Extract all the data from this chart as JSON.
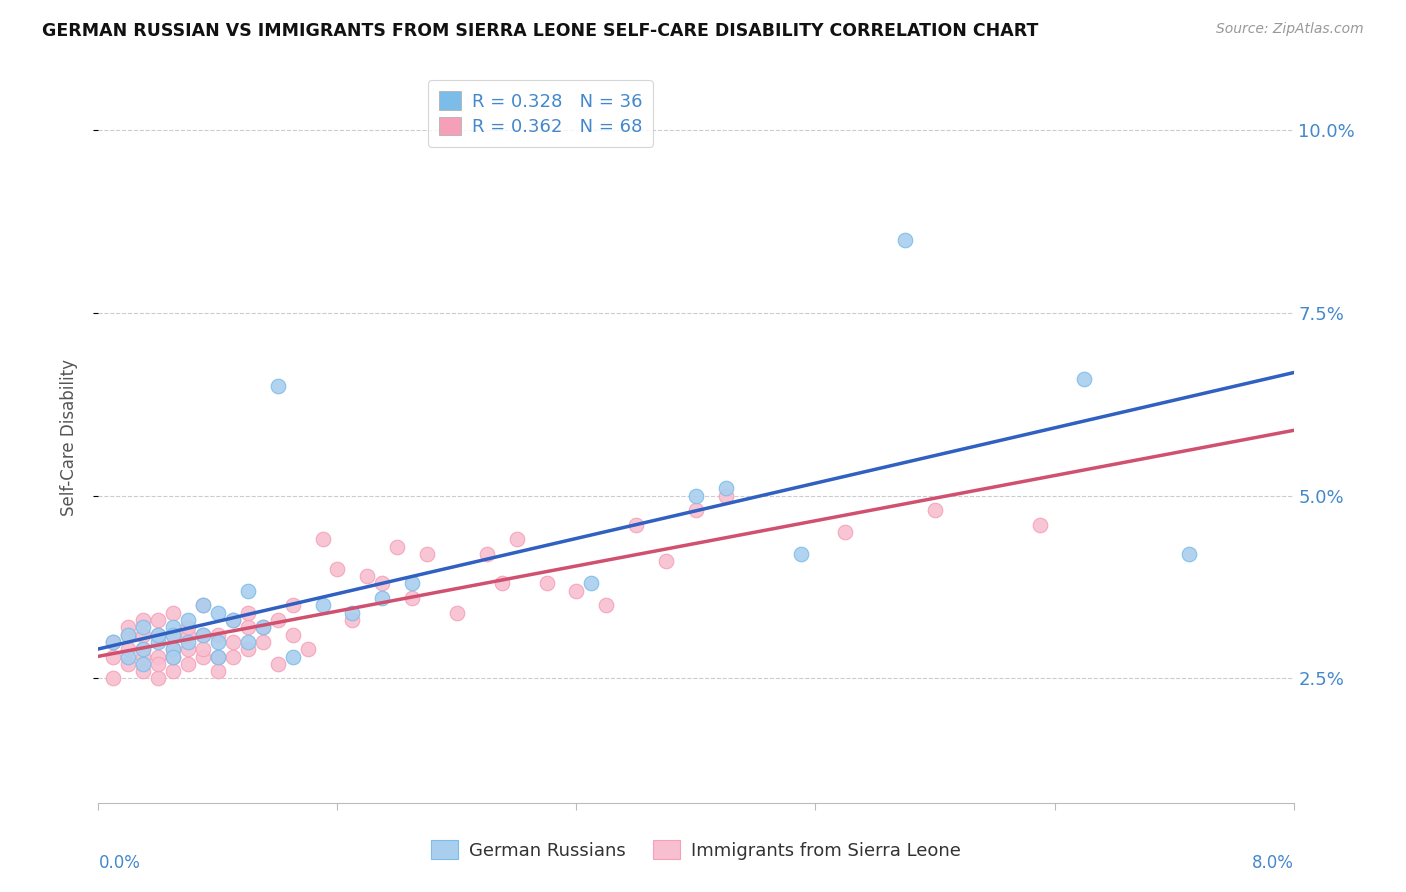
{
  "title": "GERMAN RUSSIAN VS IMMIGRANTS FROM SIERRA LEONE SELF-CARE DISABILITY CORRELATION CHART",
  "source": "Source: ZipAtlas.com",
  "ylabel": "Self-Care Disability",
  "right_yticks": [
    "2.5%",
    "5.0%",
    "7.5%",
    "10.0%"
  ],
  "right_ytick_vals": [
    0.025,
    0.05,
    0.075,
    0.1
  ],
  "xlim": [
    0.0,
    0.08
  ],
  "ylim": [
    0.008,
    0.108
  ],
  "legend_color_blue": "#7bbde8",
  "legend_color_pink": "#f5a0b8",
  "line_color_blue": "#3060c0",
  "line_color_pink": "#d05070",
  "scatter_color_blue": "#aacfee",
  "scatter_color_pink": "#f8bfd0",
  "background_color": "#ffffff",
  "grid_color": "#cccccc",
  "blue_x": [
    0.001,
    0.002,
    0.002,
    0.003,
    0.003,
    0.003,
    0.004,
    0.004,
    0.005,
    0.005,
    0.005,
    0.005,
    0.006,
    0.006,
    0.007,
    0.007,
    0.008,
    0.008,
    0.008,
    0.009,
    0.01,
    0.01,
    0.011,
    0.012,
    0.013,
    0.015,
    0.017,
    0.019,
    0.021,
    0.033,
    0.04,
    0.042,
    0.047,
    0.054,
    0.066,
    0.073
  ],
  "blue_y": [
    0.03,
    0.031,
    0.028,
    0.027,
    0.032,
    0.029,
    0.03,
    0.031,
    0.032,
    0.031,
    0.029,
    0.028,
    0.033,
    0.03,
    0.031,
    0.035,
    0.034,
    0.03,
    0.028,
    0.033,
    0.037,
    0.03,
    0.032,
    0.065,
    0.028,
    0.035,
    0.034,
    0.036,
    0.038,
    0.038,
    0.05,
    0.051,
    0.042,
    0.085,
    0.066,
    0.042
  ],
  "pink_x": [
    0.001,
    0.001,
    0.001,
    0.002,
    0.002,
    0.002,
    0.002,
    0.003,
    0.003,
    0.003,
    0.003,
    0.003,
    0.004,
    0.004,
    0.004,
    0.004,
    0.004,
    0.005,
    0.005,
    0.005,
    0.005,
    0.005,
    0.006,
    0.006,
    0.006,
    0.006,
    0.007,
    0.007,
    0.007,
    0.007,
    0.008,
    0.008,
    0.008,
    0.009,
    0.009,
    0.009,
    0.01,
    0.01,
    0.01,
    0.011,
    0.011,
    0.012,
    0.012,
    0.013,
    0.013,
    0.014,
    0.015,
    0.016,
    0.017,
    0.018,
    0.019,
    0.02,
    0.021,
    0.022,
    0.024,
    0.026,
    0.027,
    0.028,
    0.03,
    0.032,
    0.034,
    0.036,
    0.038,
    0.04,
    0.042,
    0.05,
    0.056,
    0.063
  ],
  "pink_y": [
    0.028,
    0.03,
    0.025,
    0.029,
    0.031,
    0.027,
    0.032,
    0.026,
    0.029,
    0.031,
    0.028,
    0.033,
    0.025,
    0.028,
    0.031,
    0.033,
    0.027,
    0.026,
    0.031,
    0.029,
    0.034,
    0.028,
    0.027,
    0.031,
    0.029,
    0.032,
    0.028,
    0.031,
    0.035,
    0.029,
    0.028,
    0.031,
    0.026,
    0.03,
    0.033,
    0.028,
    0.032,
    0.029,
    0.034,
    0.03,
    0.032,
    0.027,
    0.033,
    0.031,
    0.035,
    0.029,
    0.044,
    0.04,
    0.033,
    0.039,
    0.038,
    0.043,
    0.036,
    0.042,
    0.034,
    0.042,
    0.038,
    0.044,
    0.038,
    0.037,
    0.035,
    0.046,
    0.041,
    0.048,
    0.05,
    0.045,
    0.048,
    0.046
  ]
}
